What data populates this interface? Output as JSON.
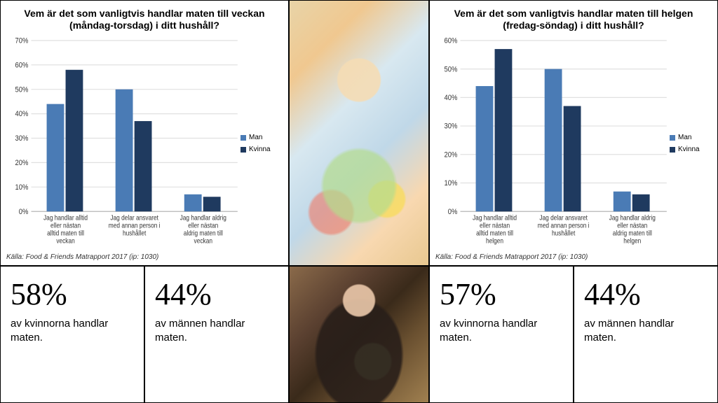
{
  "left_chart": {
    "type": "bar",
    "title": "Vem är det som vanligtvis handlar maten till veckan (måndag-torsdag) i ditt hushåll?",
    "categories": [
      "Jag handlar alltid eller nästan alltid maten till veckan",
      "Jag delar ansvaret med annan person i hushållet",
      "Jag handlar aldrig eller nästan aldrig maten till veckan"
    ],
    "series": [
      {
        "name": "Man",
        "color": "#4a7bb5",
        "values": [
          44,
          50,
          7
        ]
      },
      {
        "name": "Kvinna",
        "color": "#1f3a5f",
        "values": [
          58,
          37,
          6
        ]
      }
    ],
    "ylim": [
      0,
      70
    ],
    "ytick_step": 10,
    "y_format_suffix": "%",
    "background_color": "#ffffff",
    "grid_color": "#e0e0e0",
    "bar_group_width": 0.55,
    "source": "Källa: Food & Friends Matrapport 2017  (ip: 1030)"
  },
  "right_chart": {
    "type": "bar",
    "title": "Vem är det som vanligtvis handlar maten till helgen (fredag-söndag) i ditt hushåll?",
    "categories": [
      "Jag handlar alltid eller nästan alltid maten till helgen",
      "Jag delar ansvaret med annan person i hushållet",
      "Jag handlar aldrig eller nästan aldrig maten till helgen"
    ],
    "series": [
      {
        "name": "Man",
        "color": "#4a7bb5",
        "values": [
          44,
          50,
          7
        ]
      },
      {
        "name": "Kvinna",
        "color": "#1f3a5f",
        "values": [
          57,
          37,
          6
        ]
      }
    ],
    "ylim": [
      0,
      60
    ],
    "ytick_step": 10,
    "y_format_suffix": "%",
    "background_color": "#ffffff",
    "grid_color": "#e0e0e0",
    "bar_group_width": 0.55,
    "source": "Källa: Food & Friends Matrapport 2017  (ip: 1030)"
  },
  "legend_labels": {
    "man": "Man",
    "kvinna": "Kvinna"
  },
  "stats": {
    "weekday_women": {
      "pct": "58%",
      "text": "av kvinnorna handlar maten."
    },
    "weekday_men": {
      "pct": "44%",
      "text": "av männen handlar maten."
    },
    "weekend_women": {
      "pct": "57%",
      "text": "av kvinnorna handlar maten."
    },
    "weekend_men": {
      "pct": "44%",
      "text": "av männen handlar maten."
    }
  },
  "photos": {
    "top_alt": "Woman and child with grocery cart",
    "bottom_alt": "Man holding vegetables"
  }
}
